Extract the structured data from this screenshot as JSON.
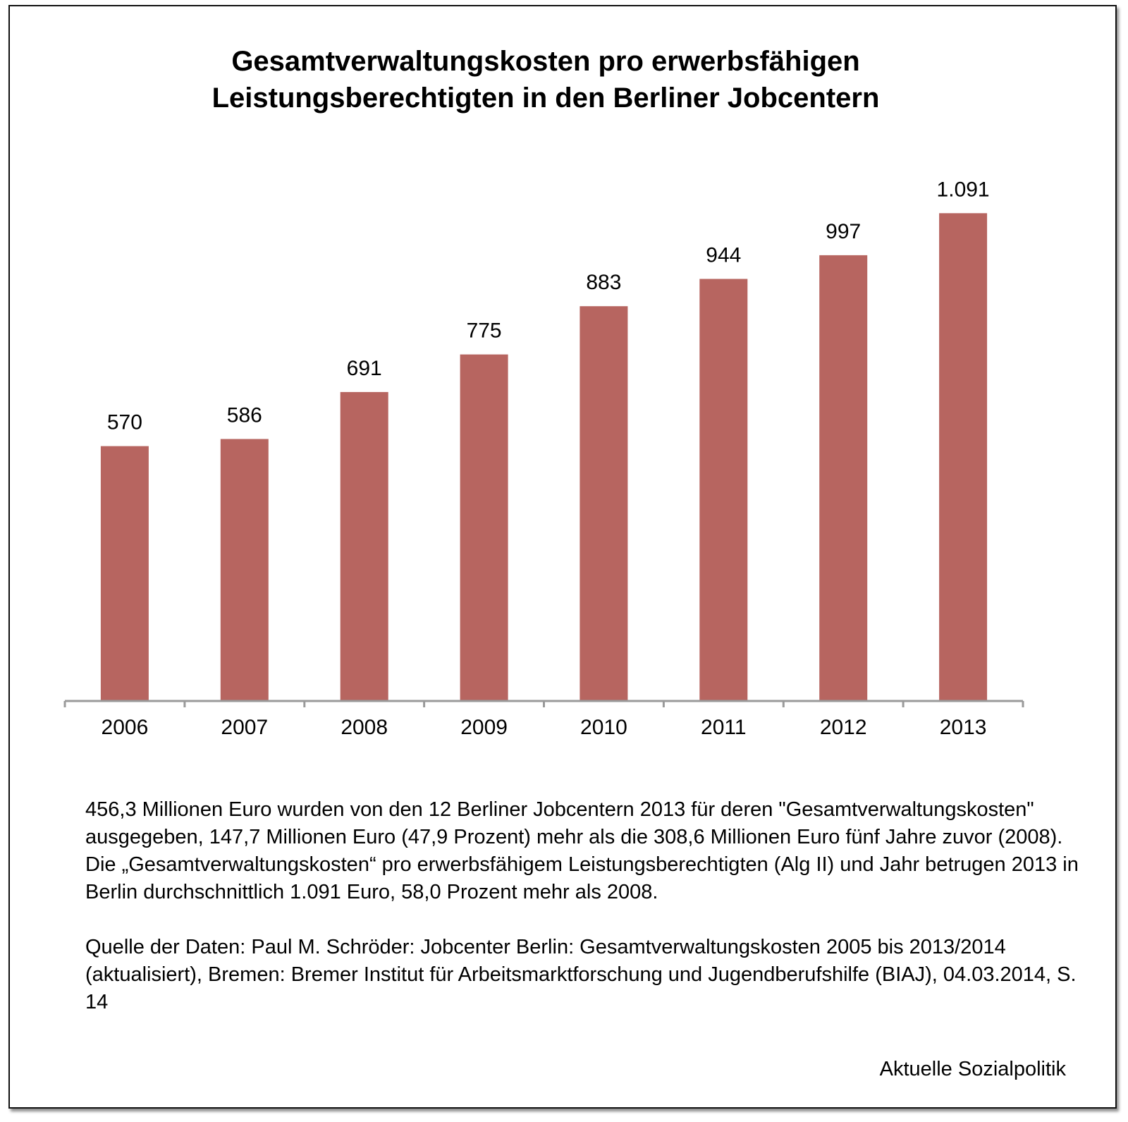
{
  "title_lines": [
    "Gesamtverwaltungskosten pro erwerbsfähigen",
    "Leistungsberechtigten in den Berliner Jobcentern"
  ],
  "chart_data": {
    "type": "bar",
    "categories": [
      "2006",
      "2007",
      "2008",
      "2009",
      "2010",
      "2011",
      "2012",
      "2013"
    ],
    "values": [
      570,
      586,
      691,
      775,
      883,
      944,
      997,
      1091
    ],
    "value_labels": [
      "570",
      "586",
      "691",
      "775",
      "883",
      "944",
      "997",
      "1.091"
    ],
    "title": "Gesamtverwaltungskosten pro erwerbsfähigen Leistungsberechtigten in den Berliner Jobcentern",
    "xlabel": "",
    "ylabel": "",
    "ylim": [
      0,
      1150
    ],
    "grid": false,
    "legend": "none",
    "bar_color": "#b76560",
    "axis_color": "#9a9a9a"
  },
  "notes": [
    "456,3 Millionen Euro wurden von den 12 Berliner Jobcentern 2013 für deren \"Gesamtverwaltungskosten\" ausgegeben, 147,7 Millionen Euro (47,9 Prozent) mehr als die 308,6 Millionen Euro fünf Jahre zuvor (2008).",
    "Die „Gesamtverwaltungskosten“ pro erwerbsfähigem Leistungsberechtigten (Alg II) und Jahr betrugen 2013 in Berlin durchschnittlich 1.091 Euro, 58,0 Prozent mehr als 2008."
  ],
  "source": "Quelle der Daten: Paul M. Schröder: Jobcenter Berlin: Gesamtverwaltungskosten 2005 bis 2013/2014 (aktualisiert), Bremen: Bremer Institut für Arbeitsmarktforschung und Jugendberufshilfe (BIAJ), 04.03.2014, S. 14",
  "credit": "Aktuelle Sozialpolitik"
}
